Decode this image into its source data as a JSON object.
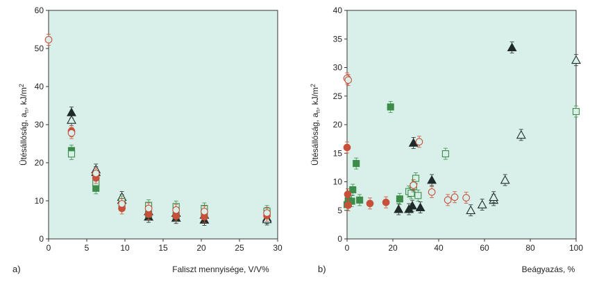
{
  "chart_data": [
    {
      "type": "scatter",
      "panel_label": "a)",
      "xlabel": "Faliszt mennyisége, V/V%",
      "ylabel": "Ütésállóság, a",
      "ylabel_sub": "n",
      "ylabel_unit": ", kJ/m",
      "ylabel_sup": "2",
      "xlim": [
        0,
        30
      ],
      "ylim": [
        0,
        60
      ],
      "xticks": [
        "0",
        "5",
        "10",
        "15",
        "20",
        "25",
        "30"
      ],
      "yticks": [
        "0",
        "10",
        "20",
        "30",
        "40",
        "50",
        "60"
      ],
      "background": "#d9efe9",
      "series": [
        {
          "marker": "triangle-filled",
          "color": "#1f2a2a",
          "points": [
            [
              3,
              33.2
            ],
            [
              6.2,
              17.5
            ],
            [
              9.6,
              10.2
            ],
            [
              13.1,
              5.8
            ],
            [
              16.7,
              5.5
            ],
            [
              20.4,
              5.0
            ],
            [
              28.6,
              5.5
            ]
          ]
        },
        {
          "marker": "triangle-open",
          "color": "#1f2a2a",
          "points": [
            [
              3,
              31.2
            ],
            [
              6.2,
              18.2
            ],
            [
              9.6,
              11.0
            ],
            [
              13.1,
              7.2
            ],
            [
              16.7,
              6.8
            ],
            [
              20.4,
              6.3
            ],
            [
              28.6,
              5.1
            ]
          ]
        },
        {
          "marker": "square-filled",
          "color": "#3c8c4a",
          "points": [
            [
              3,
              23.2
            ],
            [
              6.2,
              13.3
            ],
            [
              9.6,
              9.2
            ],
            [
              13.1,
              6.5
            ],
            [
              16.7,
              6.2
            ],
            [
              20.4,
              6.5
            ],
            [
              28.6,
              6.8
            ]
          ]
        },
        {
          "marker": "square-open",
          "color": "#3c8c4a",
          "points": [
            [
              3,
              22.3
            ],
            [
              6.2,
              14.8
            ],
            [
              9.6,
              9.8
            ],
            [
              13.1,
              8.8
            ],
            [
              16.7,
              8.5
            ],
            [
              20.4,
              8.0
            ],
            [
              28.6,
              7.3
            ]
          ]
        },
        {
          "marker": "circle-filled",
          "color": "#c8503a",
          "points": [
            [
              3,
              28.3
            ],
            [
              6.2,
              16.0
            ],
            [
              9.6,
              8.0
            ],
            [
              13.1,
              6.5
            ],
            [
              16.7,
              6.0
            ],
            [
              20.4,
              5.8
            ],
            [
              28.6,
              6.1
            ]
          ]
        },
        {
          "marker": "circle-open",
          "color": "#c8503a",
          "points": [
            [
              0,
              52.3
            ],
            [
              3,
              27.8
            ],
            [
              6.2,
              17.2
            ],
            [
              9.6,
              9.2
            ],
            [
              13.1,
              8.0
            ],
            [
              16.7,
              7.6
            ],
            [
              20.4,
              7.2
            ],
            [
              28.6,
              6.8
            ]
          ]
        }
      ]
    },
    {
      "type": "scatter",
      "panel_label": "b)",
      "xlabel": "Beágyazás, %",
      "ylabel": "Ütésállóság, a",
      "ylabel_sub": "n",
      "ylabel_unit": ", kJ/m",
      "ylabel_sup": "2",
      "xlim": [
        0,
        100
      ],
      "ylim": [
        0,
        40
      ],
      "xticks": [
        "0",
        "20",
        "40",
        "60",
        "80",
        "100"
      ],
      "yticks": [
        "0",
        "5",
        "10",
        "15",
        "20",
        "25",
        "30",
        "35",
        "40"
      ],
      "background": "#d9efe9",
      "series": [
        {
          "marker": "triangle-filled",
          "color": "#1f2a2a",
          "points": [
            [
              22.5,
              5.2
            ],
            [
              27,
              5.2
            ],
            [
              28.5,
              5.8
            ],
            [
              32,
              5.5
            ],
            [
              29,
              16.8
            ],
            [
              37,
              10.3
            ],
            [
              72,
              33.5
            ]
          ]
        },
        {
          "marker": "triangle-open",
          "color": "#1f2a2a",
          "points": [
            [
              54,
              5.0
            ],
            [
              59,
              6.0
            ],
            [
              64,
              6.8
            ],
            [
              64,
              7.3
            ],
            [
              69,
              10.3
            ],
            [
              76,
              18.2
            ],
            [
              100,
              31.3
            ]
          ]
        },
        {
          "marker": "square-filled",
          "color": "#3c8c4a",
          "points": [
            [
              0,
              6.0
            ],
            [
              0.5,
              6.7
            ],
            [
              2,
              6.6
            ],
            [
              2.5,
              8.6
            ],
            [
              4,
              13.2
            ],
            [
              5.5,
              6.8
            ],
            [
              19,
              23.1
            ],
            [
              23,
              7.0
            ]
          ]
        },
        {
          "marker": "square-open",
          "color": "#3c8c4a",
          "points": [
            [
              27,
              8.3
            ],
            [
              28,
              8.0
            ],
            [
              29,
              9.2
            ],
            [
              30,
              10.6
            ],
            [
              31,
              7.6
            ],
            [
              43,
              14.9
            ],
            [
              100,
              22.3
            ]
          ]
        },
        {
          "marker": "circle-filled",
          "color": "#c8503a",
          "points": [
            [
              0,
              16.0
            ],
            [
              0.3,
              7.8
            ],
            [
              0.5,
              5.9
            ],
            [
              10,
              6.2
            ],
            [
              17,
              6.4
            ]
          ]
        },
        {
          "marker": "circle-open",
          "color": "#c8503a",
          "points": [
            [
              0,
              28.1
            ],
            [
              0.5,
              27.8
            ],
            [
              29,
              9.4
            ],
            [
              31.5,
              17.0
            ],
            [
              37,
              8.2
            ],
            [
              44,
              6.8
            ],
            [
              47,
              7.3
            ],
            [
              52,
              7.2
            ]
          ]
        }
      ]
    }
  ]
}
